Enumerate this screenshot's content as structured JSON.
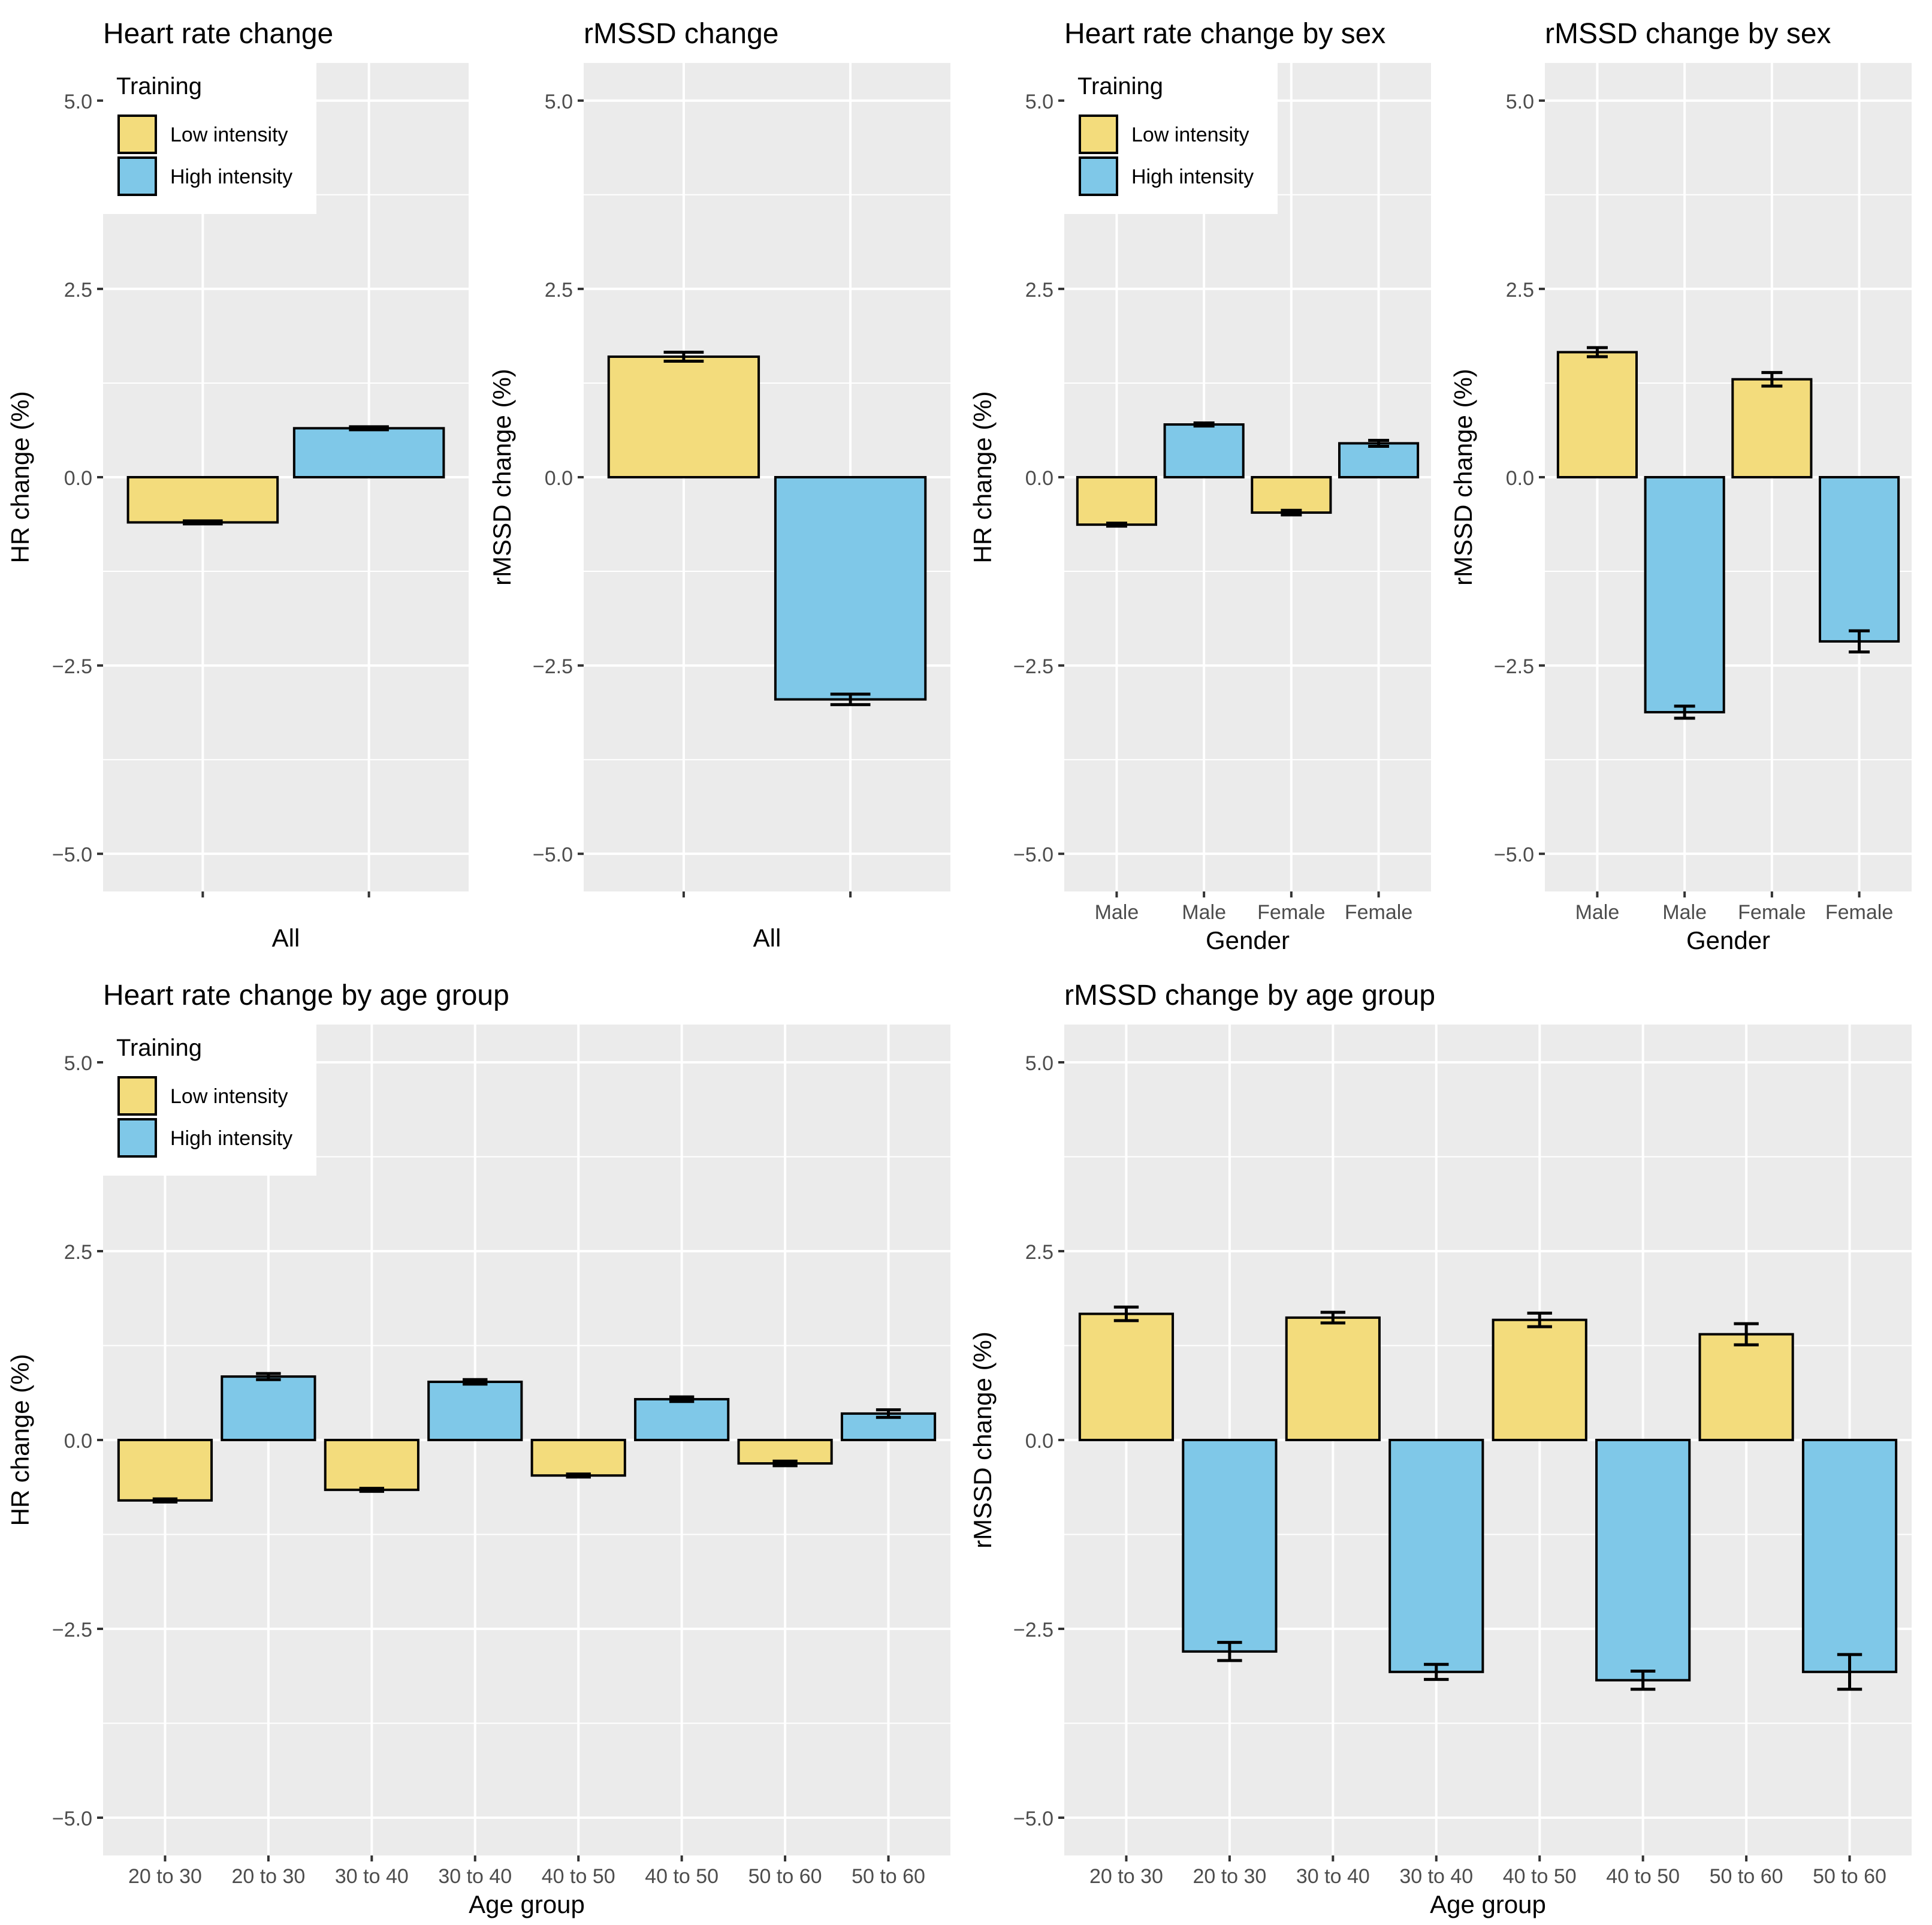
{
  "colors": {
    "low": "#f3dc7c",
    "high": "#7fc8e8",
    "panel_bg": "#ebebeb",
    "grid": "#ffffff",
    "bar_outline": "#000000",
    "tick_text": "#4d4d4d",
    "title_text": "#000000"
  },
  "legend": {
    "title": "Training",
    "items": [
      {
        "label": "Low intensity",
        "key": "low"
      },
      {
        "label": "High intensity",
        "key": "high"
      }
    ]
  },
  "chart_data": [
    {
      "id": "hr-overall",
      "type": "bar",
      "title": "Heart rate change",
      "xlabel": "All",
      "ylabel": "HR change (%)",
      "ylim": [
        -5.5,
        5.5
      ],
      "yticks": [
        -5.0,
        -2.5,
        0.0,
        2.5,
        5.0
      ],
      "ytick_labels": [
        "−5.0",
        "−2.5",
        "0.0",
        "2.5",
        "5.0"
      ],
      "categories": [
        "",
        ""
      ],
      "legend": true,
      "bars": [
        {
          "training": "Low intensity",
          "key": "low",
          "value": -0.6,
          "err": 0.02
        },
        {
          "training": "High intensity",
          "key": "high",
          "value": 0.65,
          "err": 0.02
        }
      ]
    },
    {
      "id": "rmssd-overall",
      "type": "bar",
      "title": "rMSSD change",
      "xlabel": "All",
      "ylabel": "rMSSD change (%)",
      "ylim": [
        -5.5,
        5.5
      ],
      "yticks": [
        -5.0,
        -2.5,
        0.0,
        2.5,
        5.0
      ],
      "ytick_labels": [
        "−5.0",
        "−2.5",
        "0.0",
        "2.5",
        "5.0"
      ],
      "categories": [
        "",
        ""
      ],
      "legend": false,
      "bars": [
        {
          "training": "Low intensity",
          "key": "low",
          "value": 1.6,
          "err": 0.06
        },
        {
          "training": "High intensity",
          "key": "high",
          "value": -2.95,
          "err": 0.07
        }
      ]
    },
    {
      "id": "hr-sex",
      "type": "bar",
      "title": "Heart rate change by sex",
      "xlabel": "Gender",
      "ylabel": "HR change (%)",
      "ylim": [
        -5.5,
        5.5
      ],
      "yticks": [
        -5.0,
        -2.5,
        0.0,
        2.5,
        5.0
      ],
      "ytick_labels": [
        "−5.0",
        "−2.5",
        "0.0",
        "2.5",
        "5.0"
      ],
      "categories": [
        "Male",
        "Male",
        "Female",
        "Female"
      ],
      "legend": true,
      "bars": [
        {
          "training": "Low intensity",
          "key": "low",
          "value": -0.63,
          "err": 0.02
        },
        {
          "training": "High intensity",
          "key": "high",
          "value": 0.7,
          "err": 0.02
        },
        {
          "training": "Low intensity",
          "key": "low",
          "value": -0.47,
          "err": 0.03
        },
        {
          "training": "High intensity",
          "key": "high",
          "value": 0.45,
          "err": 0.04
        }
      ]
    },
    {
      "id": "rmssd-sex",
      "type": "bar",
      "title": "rMSSD change by sex",
      "xlabel": "Gender",
      "ylabel": "rMSSD change (%)",
      "ylim": [
        -5.5,
        5.5
      ],
      "yticks": [
        -5.0,
        -2.5,
        0.0,
        2.5,
        5.0
      ],
      "ytick_labels": [
        "−5.0",
        "−2.5",
        "0.0",
        "2.5",
        "5.0"
      ],
      "categories": [
        "Male",
        "Male",
        "Female",
        "Female"
      ],
      "legend": false,
      "bars": [
        {
          "training": "Low intensity",
          "key": "low",
          "value": 1.66,
          "err": 0.06
        },
        {
          "training": "High intensity",
          "key": "high",
          "value": -3.12,
          "err": 0.08
        },
        {
          "training": "Low intensity",
          "key": "low",
          "value": 1.3,
          "err": 0.09
        },
        {
          "training": "High intensity",
          "key": "high",
          "value": -2.18,
          "err": 0.14
        }
      ]
    },
    {
      "id": "hr-age",
      "type": "bar",
      "title": "Heart rate change by age group",
      "xlabel": "Age group",
      "ylabel": "HR change (%)",
      "ylim": [
        -5.5,
        5.5
      ],
      "yticks": [
        -5.0,
        -2.5,
        0.0,
        2.5,
        5.0
      ],
      "ytick_labels": [
        "−5.0",
        "−2.5",
        "0.0",
        "2.5",
        "5.0"
      ],
      "categories": [
        "20 to 30",
        "20 to 30",
        "30 to 40",
        "30 to 40",
        "40 to 50",
        "40 to 50",
        "50 to 60",
        "50 to 60"
      ],
      "legend": true,
      "bars": [
        {
          "training": "Low intensity",
          "key": "low",
          "value": -0.8,
          "err": 0.02
        },
        {
          "training": "High intensity",
          "key": "high",
          "value": 0.84,
          "err": 0.04
        },
        {
          "training": "Low intensity",
          "key": "low",
          "value": -0.66,
          "err": 0.02
        },
        {
          "training": "High intensity",
          "key": "high",
          "value": 0.77,
          "err": 0.03
        },
        {
          "training": "Low intensity",
          "key": "low",
          "value": -0.47,
          "err": 0.02
        },
        {
          "training": "High intensity",
          "key": "high",
          "value": 0.54,
          "err": 0.03
        },
        {
          "training": "Low intensity",
          "key": "low",
          "value": -0.31,
          "err": 0.03
        },
        {
          "training": "High intensity",
          "key": "high",
          "value": 0.35,
          "err": 0.05
        }
      ]
    },
    {
      "id": "rmssd-age",
      "type": "bar",
      "title": "rMSSD change by age group",
      "xlabel": "Age group",
      "ylabel": "rMSSD change (%)",
      "ylim": [
        -5.5,
        5.5
      ],
      "yticks": [
        -5.0,
        -2.5,
        0.0,
        2.5,
        5.0
      ],
      "ytick_labels": [
        "−5.0",
        "−2.5",
        "0.0",
        "2.5",
        "5.0"
      ],
      "categories": [
        "20 to 30",
        "20 to 30",
        "30 to 40",
        "30 to 40",
        "40 to 50",
        "40 to 50",
        "50 to 60",
        "50 to 60"
      ],
      "legend": false,
      "bars": [
        {
          "training": "Low intensity",
          "key": "low",
          "value": 1.67,
          "err": 0.09
        },
        {
          "training": "High intensity",
          "key": "high",
          "value": -2.8,
          "err": 0.12
        },
        {
          "training": "Low intensity",
          "key": "low",
          "value": 1.62,
          "err": 0.07
        },
        {
          "training": "High intensity",
          "key": "high",
          "value": -3.07,
          "err": 0.1
        },
        {
          "training": "Low intensity",
          "key": "low",
          "value": 1.59,
          "err": 0.09
        },
        {
          "training": "High intensity",
          "key": "high",
          "value": -3.18,
          "err": 0.12
        },
        {
          "training": "Low intensity",
          "key": "low",
          "value": 1.4,
          "err": 0.14
        },
        {
          "training": "High intensity",
          "key": "high",
          "value": -3.07,
          "err": 0.23
        }
      ]
    }
  ]
}
